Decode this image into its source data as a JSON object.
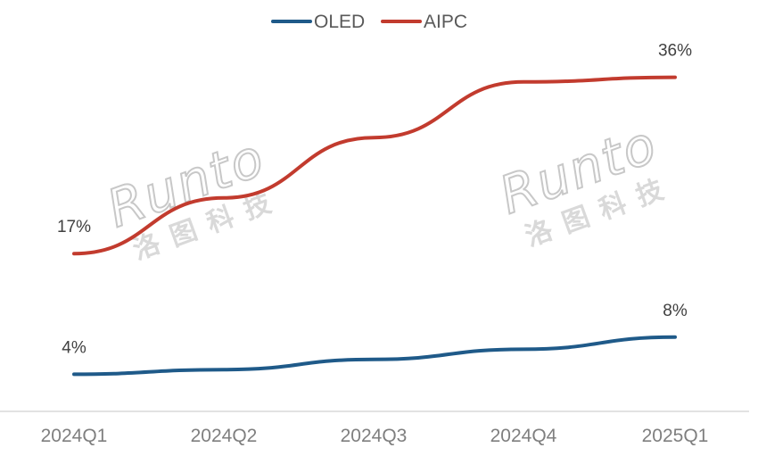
{
  "chart_data": {
    "type": "line",
    "categories": [
      "2024Q1",
      "2024Q2",
      "2024Q3",
      "2024Q4",
      "2025Q1"
    ],
    "series": [
      {
        "name": "OLED",
        "values": [
          4,
          4.5,
          5.6,
          6.7,
          8
        ],
        "color": "#1f5a89",
        "labels": [
          "4%",
          "",
          "",
          "",
          "8%"
        ]
      },
      {
        "name": "AIPC",
        "values": [
          17,
          23,
          29.5,
          35.5,
          36
        ],
        "color": "#c23b2e",
        "labels": [
          "17%",
          "",
          "",
          "",
          "36%"
        ]
      }
    ],
    "title": "",
    "xlabel": "",
    "ylabel": "",
    "ylim": [
      0,
      40
    ],
    "grid": false,
    "legend_position": "top-center"
  },
  "watermark": {
    "latin": "Runto",
    "cjk": "洛图科技"
  }
}
